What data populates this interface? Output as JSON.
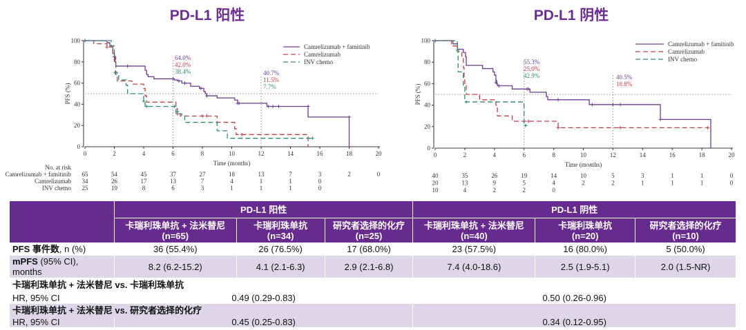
{
  "titles": {
    "left": "PD-L1 阳性",
    "right": "PD-L1 阴性"
  },
  "colors": {
    "purple": "#6a3d8f",
    "red": "#c0404a",
    "green": "#2e8a6e",
    "header": "#672a8e",
    "row": "#dcd6e8"
  },
  "chart_data": [
    {
      "type": "line",
      "title": "PD-L1 阳性",
      "xlabel": "Time (months)",
      "ylabel": "PFS (%)",
      "xlim": [
        0,
        20
      ],
      "ylim": [
        0,
        100
      ],
      "xticks": [
        0,
        2,
        4,
        6,
        8,
        10,
        12,
        14,
        16,
        18,
        20
      ],
      "yticks": [
        0,
        20,
        40,
        60,
        80,
        100
      ],
      "reference_lines": {
        "y": 50,
        "x": [
          6,
          12
        ]
      },
      "legend": [
        "Camrelizumab + famitinib",
        "Camrelizumab",
        "INV chemo"
      ],
      "legend_position": "top-right",
      "annotations": [
        {
          "x": 6,
          "labels": [
            "64.0%",
            "42.0%",
            "38.4%"
          ]
        },
        {
          "x": 12,
          "labels": [
            "40.7%",
            "11.5%",
            "7.7%"
          ]
        }
      ],
      "series": [
        {
          "name": "Camrelizumab + famitinib",
          "color": "purple",
          "dash": false,
          "steps": [
            [
              0,
              100
            ],
            [
              1.5,
              98
            ],
            [
              1.7,
              95
            ],
            [
              1.9,
              88
            ],
            [
              2.0,
              85
            ],
            [
              2.05,
              80
            ],
            [
              2.1,
              76
            ],
            [
              4.1,
              72
            ],
            [
              4.2,
              68
            ],
            [
              4.3,
              66
            ],
            [
              4.7,
              64
            ],
            [
              6.1,
              63
            ],
            [
              6.3,
              62
            ],
            [
              6.6,
              60
            ],
            [
              7.2,
              57
            ],
            [
              7.8,
              55
            ],
            [
              8.1,
              52
            ],
            [
              8.2,
              50
            ],
            [
              8.3,
              48
            ],
            [
              9.0,
              46
            ],
            [
              10.2,
              44
            ],
            [
              10.4,
              41
            ],
            [
              12.4,
              38
            ],
            [
              15.2,
              28
            ],
            [
              18,
              0
            ]
          ],
          "end": 18,
          "censors": [
            [
              0,
              100
            ],
            [
              2.0,
              85
            ],
            [
              2.9,
              76
            ],
            [
              6.0,
              64
            ],
            [
              6.4,
              62
            ],
            [
              6.8,
              60
            ],
            [
              7.9,
              55
            ],
            [
              8.3,
              48
            ],
            [
              10.4,
              41
            ],
            [
              10.5,
              41
            ],
            [
              12.5,
              38
            ],
            [
              12.8,
              38
            ],
            [
              13.2,
              38
            ],
            [
              15.2,
              38
            ],
            [
              18,
              28
            ]
          ]
        },
        {
          "name": "Camrelizumab",
          "color": "red",
          "dash": true,
          "steps": [
            [
              0,
              100
            ],
            [
              0.6,
              97
            ],
            [
              1.5,
              94
            ],
            [
              1.9,
              88
            ],
            [
              2.0,
              80
            ],
            [
              2.1,
              70
            ],
            [
              2.2,
              62
            ],
            [
              3.2,
              59
            ],
            [
              4.0,
              55
            ],
            [
              4.1,
              48
            ],
            [
              4.2,
              42
            ],
            [
              6.2,
              36
            ],
            [
              6.3,
              31
            ],
            [
              6.5,
              29
            ],
            [
              9.0,
              23
            ],
            [
              10.2,
              17
            ],
            [
              10.3,
              11.5
            ],
            [
              15.2,
              0
            ]
          ],
          "end": 15.2,
          "censors": [
            [
              1.5,
              94
            ],
            [
              6.3,
              31
            ],
            [
              8.0,
              29
            ],
            [
              8.3,
              29
            ],
            [
              10.7,
              11.5
            ]
          ]
        },
        {
          "name": "INV chemo",
          "color": "green",
          "dash": true,
          "steps": [
            [
              0,
              100
            ],
            [
              1.8,
              95
            ],
            [
              2.0,
              85
            ],
            [
              2.1,
              68
            ],
            [
              2.3,
              63
            ],
            [
              2.8,
              58
            ],
            [
              2.9,
              50
            ],
            [
              4.0,
              43
            ],
            [
              4.1,
              38
            ],
            [
              6.2,
              31
            ],
            [
              6.6,
              29
            ],
            [
              6.8,
              23
            ],
            [
              9.0,
              15
            ],
            [
              9.7,
              8
            ]
          ],
          "end": 15.5,
          "censors": [
            [
              2.05,
              70
            ],
            [
              4.0,
              43
            ],
            [
              4.2,
              38
            ],
            [
              6.1,
              38
            ],
            [
              6.3,
              33
            ],
            [
              15.5,
              8
            ]
          ]
        }
      ],
      "risk_table": {
        "header": "No. at risk",
        "rows": [
          {
            "label": "Camrelizumab + famitinib",
            "values": [
              "65",
              "54",
              "45",
              "37",
              "27",
              "18",
              "13",
              "7",
              "3",
              "2",
              "0"
            ]
          },
          {
            "label": "Camrelizumab",
            "values": [
              "34",
              "26",
              "17",
              "13",
              "7",
              "4",
              "1",
              "1",
              "0"
            ]
          },
          {
            "label": "INV chemo",
            "values": [
              "25",
              "19",
              "8",
              "6",
              "3",
              "1",
              "1",
              "1",
              "0"
            ]
          }
        ]
      }
    },
    {
      "type": "line",
      "title": "PD-L1 阴性",
      "xlabel": "Time (months)",
      "ylabel": "PFS (%)",
      "xlim": [
        0,
        20
      ],
      "ylim": [
        0,
        100
      ],
      "xticks": [
        0,
        2,
        4,
        6,
        8,
        10,
        12,
        14,
        16,
        18,
        20
      ],
      "yticks": [
        0,
        20,
        40,
        60,
        80,
        100
      ],
      "reference_lines": {
        "y": 50,
        "x": [
          6,
          12
        ]
      },
      "legend": [
        "Camrelizumab + famitinib",
        "Camrelizumab",
        "INV chemo"
      ],
      "legend_position": "top-right",
      "annotations": [
        {
          "x": 6,
          "labels": [
            "55.3%",
            "25.0%",
            "42.9%"
          ]
        },
        {
          "x": 12,
          "labels": [
            "40.5%",
            "18.8%"
          ]
        }
      ],
      "series": [
        {
          "name": "Camrelizumab + famitinib",
          "color": "purple",
          "dash": false,
          "steps": [
            [
              0,
              100
            ],
            [
              1.2,
              97
            ],
            [
              1.5,
              92
            ],
            [
              1.9,
              89
            ],
            [
              2.05,
              85
            ],
            [
              2.1,
              77
            ],
            [
              3.2,
              74
            ],
            [
              3.9,
              71
            ],
            [
              4.0,
              68
            ],
            [
              4.1,
              63
            ],
            [
              4.15,
              60
            ],
            [
              4.2,
              58
            ],
            [
              5.2,
              55
            ],
            [
              6.4,
              52
            ],
            [
              7.5,
              48
            ],
            [
              7.6,
              45
            ],
            [
              10.4,
              40.5
            ],
            [
              15.2,
              26.7
            ],
            [
              18.6,
              0
            ]
          ],
          "end": 18.6,
          "censors": [
            [
              0,
              100
            ],
            [
              4.1,
              61
            ],
            [
              4.3,
              58
            ],
            [
              6.2,
              55
            ],
            [
              6.3,
              55
            ],
            [
              8.3,
              45
            ],
            [
              10.6,
              40.5
            ],
            [
              12.0,
              40.5
            ],
            [
              12.5,
              40.5
            ],
            [
              15.2,
              26.7
            ]
          ]
        },
        {
          "name": "Camrelizumab",
          "color": "red",
          "dash": true,
          "steps": [
            [
              0,
              100
            ],
            [
              1.1,
              95
            ],
            [
              1.5,
              90
            ],
            [
              1.8,
              85
            ],
            [
              1.9,
              75
            ],
            [
              1.95,
              65
            ],
            [
              2.0,
              60
            ],
            [
              2.1,
              50
            ],
            [
              3.0,
              45
            ],
            [
              4.1,
              40
            ],
            [
              4.2,
              30
            ],
            [
              5.2,
              25
            ],
            [
              8.3,
              19
            ]
          ],
          "end": 18.4,
          "censors": [
            [
              6.3,
              25
            ],
            [
              8.3,
              19
            ],
            [
              12.5,
              19
            ],
            [
              18.4,
              19
            ]
          ]
        },
        {
          "name": "INV chemo",
          "color": "green",
          "dash": true,
          "steps": [
            [
              0,
              100
            ],
            [
              1.5,
              90
            ],
            [
              1.55,
              71
            ],
            [
              1.9,
              57
            ],
            [
              2.0,
              43
            ],
            [
              6.0,
              21
            ]
          ],
          "end": 6.2,
          "censors": [
            [
              1.5,
              91
            ],
            [
              2.1,
              43
            ],
            [
              6.1,
              21
            ]
          ]
        }
      ],
      "risk_table": {
        "header": "",
        "rows": [
          {
            "label": "",
            "values": [
              "40",
              "35",
              "26",
              "19",
              "14",
              "10",
              "5",
              "3",
              "1",
              "1",
              "0"
            ]
          },
          {
            "label": "",
            "values": [
              "20",
              "13",
              "9",
              "5",
              "4",
              "2",
              "2",
              "1",
              "1",
              "1",
              "0"
            ]
          },
          {
            "label": "",
            "values": [
              "10",
              "4",
              "2",
              "2",
              "0"
            ]
          }
        ]
      }
    }
  ],
  "table": {
    "groups": [
      "PD-L1 阳性",
      "PD-L1 阴性"
    ],
    "arms": [
      {
        "name": "卡瑞利珠单抗 + 法米替尼",
        "n": "(n=65)"
      },
      {
        "name": "卡瑞利珠单抗",
        "n": "(n=34)"
      },
      {
        "name": "研究者选择的化疗",
        "n": "(n=25)"
      },
      {
        "name": "卡瑞利珠单抗 + 法米替尼",
        "n": "(n=40)"
      },
      {
        "name": "卡瑞利珠单抗",
        "n": "(n=20)"
      },
      {
        "name": "研究者选择的化疗",
        "n": "(n=10)"
      }
    ],
    "pfs_events": {
      "label_bold": "PFS 事件数",
      "label_rest": ", n (%)",
      "values": [
        "36 (55.4%)",
        "26 (76.5%)",
        "17 (68.0%)",
        "23 (57.5%)",
        "16 (80.0%)",
        "5 (50.0%)"
      ]
    },
    "mpfs": {
      "label_bold": "mPFS",
      "label_rest": " (95% CI),",
      "label_line2": "months",
      "values": [
        "8.2 (6.2-15.2)",
        "4.1 (2.1-6.3)",
        "2.9 (2.1-6.8)",
        "7.4 (4.0-18.6)",
        "2.5 (1.9-5.1)",
        "2.0 (1.5-NR)"
      ]
    },
    "hr1": {
      "title": "卡瑞利珠单抗 + 法米替尼 vs. 卡瑞利珠单抗",
      "label": "HR, 95% CI",
      "values": [
        "0.49 (0.29-0.83)",
        "0.50 (0.26-0.96)"
      ]
    },
    "hr2": {
      "title": "卡瑞利珠单抗 + 法米替尼 vs. 研究者选择的化疗",
      "label": "HR, 95% CI",
      "values": [
        "0.45 (0.25-0.83)",
        "0.34 (0.12-0.95)"
      ]
    }
  }
}
